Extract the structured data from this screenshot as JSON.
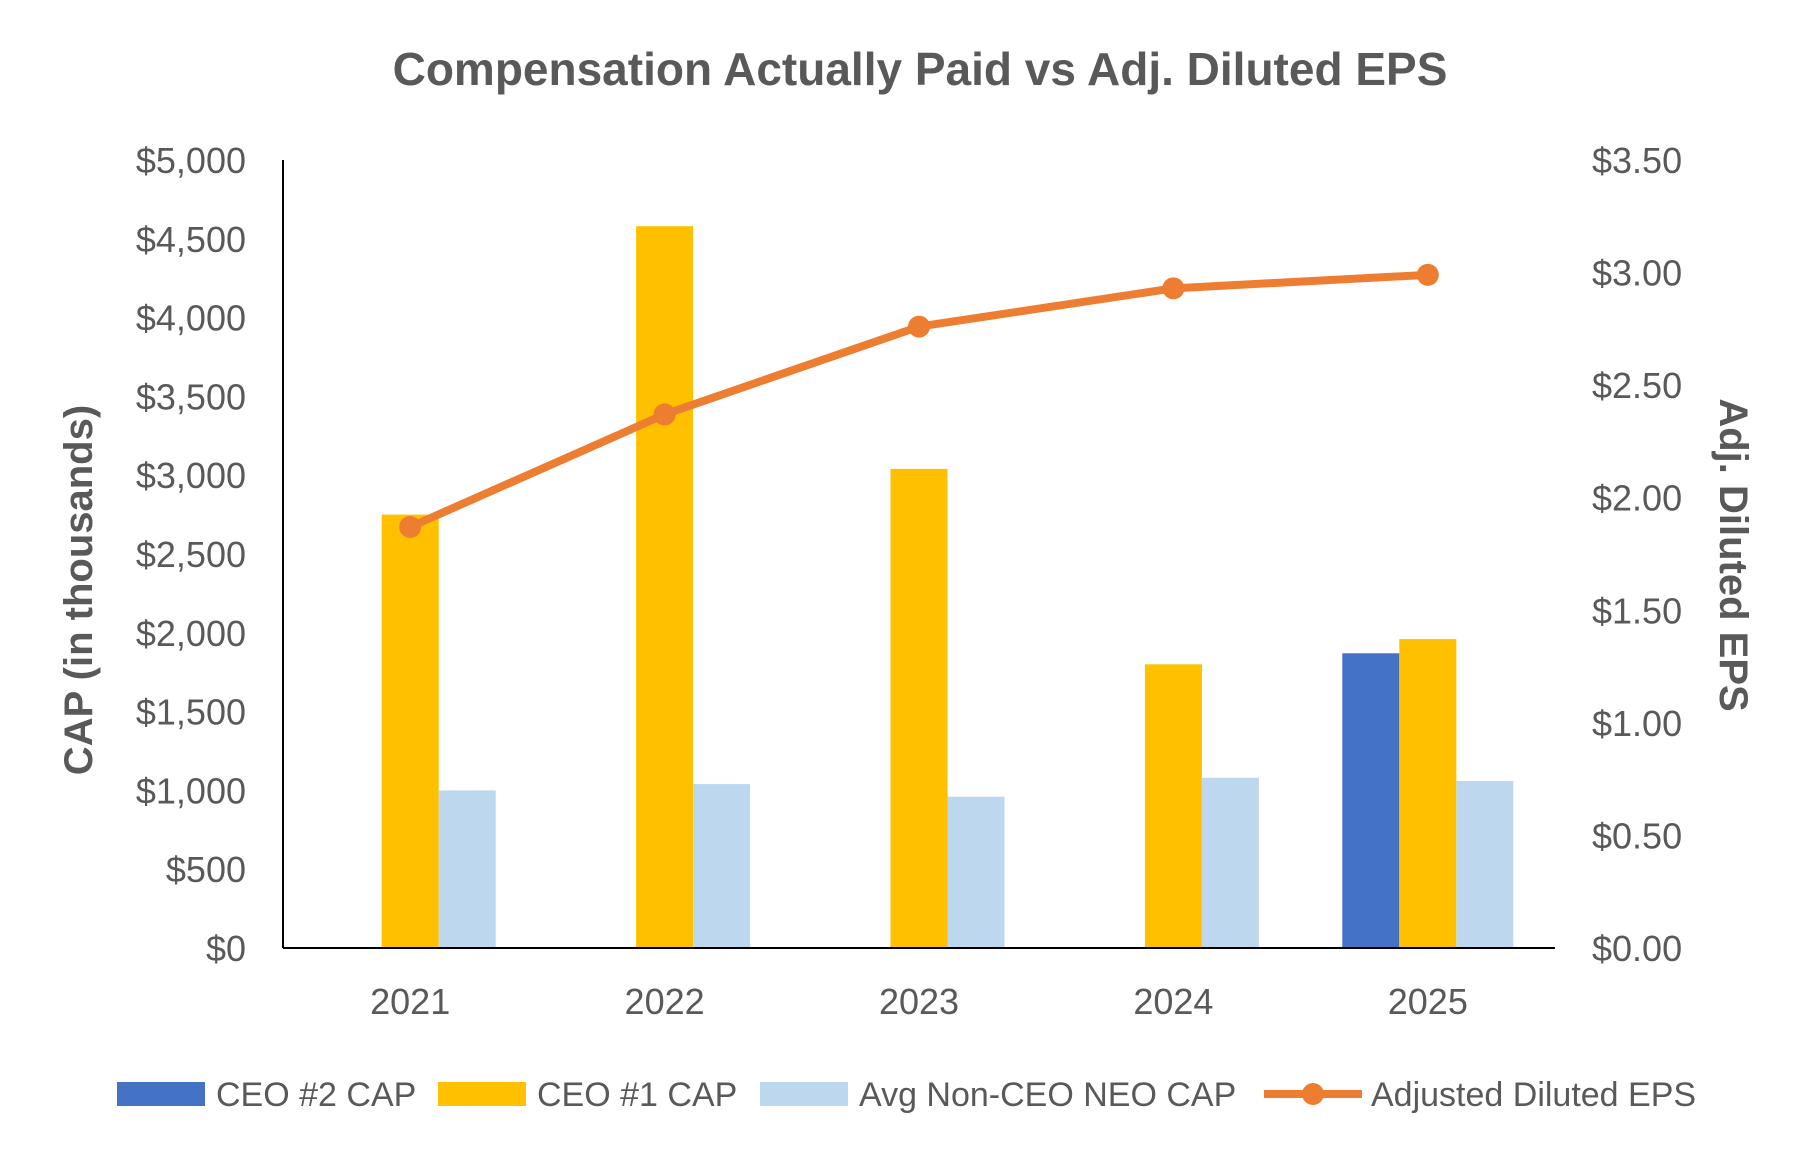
{
  "chart_data": {
    "type": "bar",
    "title": "Compensation Actually Paid vs Adj. Diluted EPS",
    "categories": [
      "2021",
      "2022",
      "2023",
      "2024",
      "2025"
    ],
    "ylabel": "CAP (in thousands)",
    "y2label": "Adj. Diluted EPS",
    "ylim": [
      0,
      5000
    ],
    "y2lim": [
      0,
      3.5
    ],
    "yticks": [
      "$0",
      "$500",
      "$1,000",
      "$1,500",
      "$2,000",
      "$2,500",
      "$3,000",
      "$3,500",
      "$4,000",
      "$4,500",
      "$5,000"
    ],
    "y2ticks": [
      "$0.00",
      "$0.50",
      "$1.00",
      "$1.50",
      "$2.00",
      "$2.50",
      "$3.00",
      "$3.50"
    ],
    "grid": false,
    "legend_position": "bottom",
    "series": [
      {
        "name": "CEO #2 CAP",
        "type": "bar",
        "axis": "left",
        "color": "#4472C4",
        "values": [
          null,
          null,
          null,
          null,
          1870
        ]
      },
      {
        "name": "CEO #1 CAP",
        "type": "bar",
        "axis": "left",
        "color": "#FFC000",
        "values": [
          2750,
          4580,
          3040,
          1800,
          1960
        ]
      },
      {
        "name": "Avg Non-CEO NEO CAP",
        "type": "bar",
        "axis": "left",
        "color": "#BDD7EE",
        "values": [
          1000,
          1040,
          960,
          1080,
          1060
        ]
      },
      {
        "name": "Adjusted Diluted EPS",
        "type": "line",
        "axis": "right",
        "color": "#ED7D31",
        "values": [
          1.87,
          2.37,
          2.76,
          2.93,
          2.99
        ]
      }
    ]
  }
}
